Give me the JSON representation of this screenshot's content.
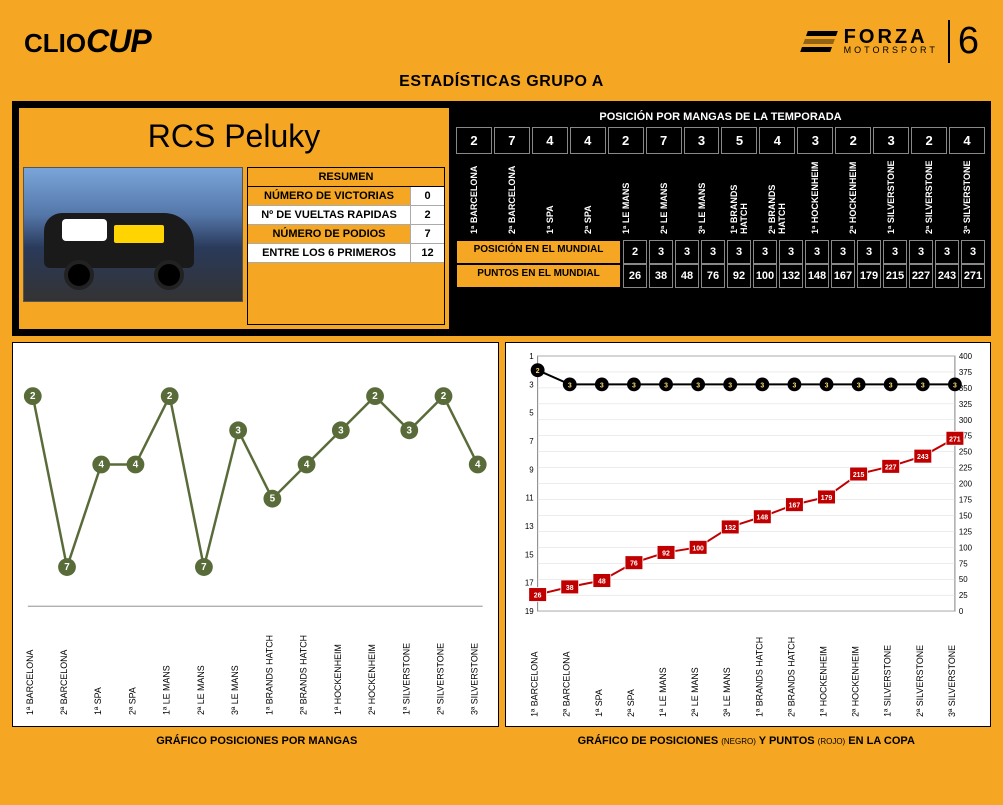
{
  "header": {
    "logo_left_1": "CLIO",
    "logo_left_2": "CUP",
    "logo_right_1": "FORZA",
    "logo_right_2": "MOTORSPORT",
    "logo_right_3": "6"
  },
  "title": "ESTADÍSTICAS GRUPO A",
  "driver_name": "RCS Peluky",
  "resumen": {
    "header": "RESUMEN",
    "rows": [
      {
        "label": "NÚMERO DE VICTORIAS",
        "value": 0,
        "orange": true
      },
      {
        "label": "Nº DE VUELTAS RAPIDAS",
        "value": 2,
        "orange": false
      },
      {
        "label": "NÚMERO DE PODIOS",
        "value": 7,
        "orange": true
      },
      {
        "label": "ENTRE LOS 6 PRIMEROS",
        "value": 12,
        "orange": false
      }
    ]
  },
  "posicion_title": "POSICIÓN POR MANGAS DE LA TEMPORADA",
  "tracks": [
    "1ª BARCELONA",
    "2ª BARCELONA",
    "1ª SPA",
    "2ª SPA",
    "1ª LE MANS",
    "2ª LE MANS",
    "3ª LE MANS",
    "1ª BRANDS HATCH",
    "2ª BRANDS HATCH",
    "1ª HOCKENHEIM",
    "2ª HOCKENHEIM",
    "1ª SILVERSTONE",
    "2ª SILVERSTONE",
    "3ª SILVERSTONE"
  ],
  "positions_mangas": [
    2,
    7,
    4,
    4,
    2,
    7,
    3,
    5,
    4,
    3,
    2,
    3,
    2,
    4
  ],
  "pos_mundial_label": "POSICIÓN EN EL MUNDIAL",
  "pos_mundial": [
    2,
    3,
    3,
    3,
    3,
    3,
    3,
    3,
    3,
    3,
    3,
    3,
    3,
    3
  ],
  "pts_mundial_label": "PUNTOS EN EL MUNDIAL",
  "pts_mundial": [
    26,
    38,
    48,
    76,
    92,
    100,
    132,
    148,
    167,
    179,
    215,
    227,
    243,
    271
  ],
  "chart_left": {
    "type": "line",
    "series_color": "#5a6b3a",
    "marker_fill": "#5a6b3a",
    "marker_text_color": "#ffffff",
    "line_width": 2.5,
    "marker_radius": 9,
    "background": "#ffffff",
    "y_range": [
      1,
      8
    ],
    "y_inverted": true,
    "label_fontsize": 9,
    "label_rotation": 90,
    "data": [
      2,
      7,
      4,
      4,
      2,
      7,
      3,
      5,
      4,
      3,
      2,
      3,
      2,
      4
    ]
  },
  "chart_right": {
    "type": "dual-axis-line",
    "background": "#ffffff",
    "grid_color": "#d9d9d9",
    "axis_color": "#808080",
    "left_axis": {
      "label_color": "#000000",
      "range": [
        1,
        19
      ],
      "inverted": true,
      "ticks": [
        1,
        3,
        5,
        7,
        9,
        11,
        13,
        15,
        17,
        19
      ],
      "series_color": "#000000",
      "marker_fill": "#000000",
      "marker_text_color": "#ffd966",
      "marker_radius": 7,
      "line_width": 2,
      "data": [
        2,
        3,
        3,
        3,
        3,
        3,
        3,
        3,
        3,
        3,
        3,
        3,
        3,
        3
      ]
    },
    "right_axis": {
      "label_color": "#000000",
      "range": [
        0,
        400
      ],
      "ticks": [
        0,
        25,
        50,
        75,
        100,
        125,
        150,
        175,
        200,
        225,
        250,
        275,
        300,
        325,
        350,
        375,
        400
      ],
      "series_color": "#c00000",
      "marker_fill": "#c00000",
      "marker_text_color": "#ffffff",
      "marker_size": 18,
      "line_width": 2,
      "data": [
        26,
        38,
        48,
        76,
        92,
        100,
        132,
        148,
        167,
        179,
        215,
        227,
        243,
        271
      ]
    },
    "label_fontsize": 9,
    "label_rotation": 90
  },
  "caption_left": "GRÁFICO POSICIONES POR MANGAS",
  "caption_right_1": "GRÁFICO DE POSICIONES",
  "caption_right_2": "(NEGRO)",
  "caption_right_3": "Y PUNTOS",
  "caption_right_4": "(ROJO)",
  "caption_right_5": "EN LA COPA",
  "colors": {
    "orange": "#f5a623",
    "black": "#000000",
    "white": "#ffffff",
    "olive": "#5a6b3a",
    "red": "#c00000"
  }
}
